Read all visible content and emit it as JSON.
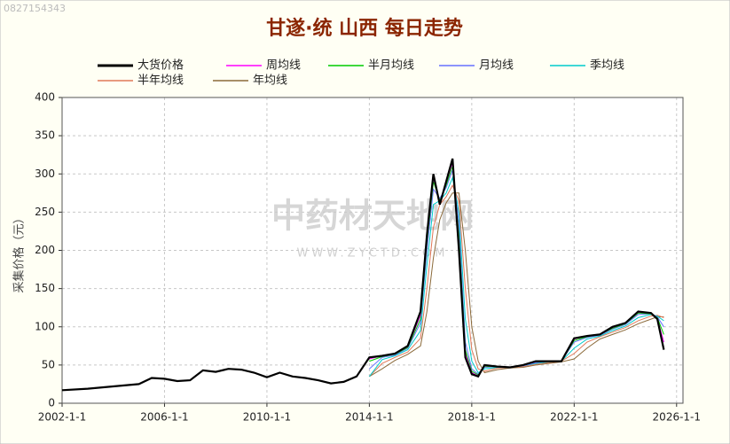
{
  "watermark_id": "0827154343",
  "watermark_logo": "中药材天地网",
  "watermark_url": "WWW.ZYCTD.COM",
  "chart_data": {
    "type": "line",
    "title": "甘遂·统 山西 每日走势",
    "y_label": "采集价格（元）",
    "x": [
      "2002-1-1",
      "2003-1-1",
      "2004-1-1",
      "2005-1-1",
      "2005-7-1",
      "2006-1-1",
      "2006-7-1",
      "2007-1-1",
      "2007-7-1",
      "2008-1-1",
      "2008-7-1",
      "2009-1-1",
      "2009-7-1",
      "2010-1-1",
      "2010-7-1",
      "2011-1-1",
      "2011-7-1",
      "2012-1-1",
      "2012-7-1",
      "2013-1-1",
      "2013-7-1",
      "2014-1-1",
      "2014-7-1",
      "2015-1-1",
      "2015-7-1",
      "2016-1-1",
      "2016-4-1",
      "2016-7-1",
      "2016-10-1",
      "2017-1-1",
      "2017-4-1",
      "2017-7-1",
      "2017-10-1",
      "2018-1-1",
      "2018-4-1",
      "2018-7-1",
      "2019-1-1",
      "2019-7-1",
      "2020-1-1",
      "2020-7-1",
      "2021-1-1",
      "2021-7-1",
      "2022-1-1",
      "2022-7-1",
      "2023-1-1",
      "2023-7-1",
      "2024-1-1",
      "2024-7-1",
      "2025-1-1",
      "2025-4-1",
      "2025-7-1"
    ],
    "series": [
      {
        "name": "大货价格",
        "color": "#000000",
        "width": 2.2,
        "values": [
          17,
          19,
          22,
          25,
          33,
          32,
          29,
          30,
          43,
          41,
          45,
          44,
          40,
          34,
          40,
          35,
          33,
          30,
          26,
          28,
          35,
          60,
          62,
          65,
          75,
          120,
          220,
          300,
          260,
          290,
          320,
          200,
          60,
          38,
          35,
          50,
          48,
          47,
          50,
          55,
          55,
          55,
          85,
          88,
          90,
          100,
          105,
          120,
          118,
          110,
          70
        ]
      },
      {
        "name": "周均线",
        "color": "#ff00ff",
        "width": 1,
        "values": [
          null,
          null,
          null,
          null,
          null,
          null,
          null,
          null,
          null,
          null,
          null,
          null,
          null,
          null,
          null,
          null,
          null,
          null,
          null,
          null,
          null,
          58,
          62,
          65,
          74,
          115,
          215,
          295,
          262,
          288,
          315,
          210,
          65,
          40,
          36,
          49,
          48,
          47,
          50,
          54,
          55,
          55,
          84,
          88,
          90,
          99,
          105,
          119,
          118,
          111,
          80
        ]
      },
      {
        "name": "半月均线",
        "color": "#00cc00",
        "width": 1,
        "values": [
          null,
          null,
          null,
          null,
          null,
          null,
          null,
          null,
          null,
          null,
          null,
          null,
          null,
          null,
          null,
          null,
          null,
          null,
          null,
          null,
          null,
          55,
          61,
          64,
          73,
          110,
          210,
          290,
          265,
          285,
          310,
          220,
          70,
          42,
          37,
          48,
          48,
          47,
          50,
          54,
          55,
          55,
          82,
          87,
          90,
          98,
          104,
          118,
          117,
          112,
          90
        ]
      },
      {
        "name": "月均线",
        "color": "#6670ff",
        "width": 1,
        "values": [
          null,
          null,
          null,
          null,
          null,
          null,
          null,
          null,
          null,
          null,
          null,
          null,
          null,
          null,
          null,
          null,
          null,
          null,
          null,
          null,
          null,
          45,
          60,
          63,
          72,
          105,
          200,
          280,
          268,
          282,
          305,
          235,
          80,
          45,
          38,
          47,
          48,
          47,
          49,
          53,
          55,
          55,
          80,
          86,
          89,
          97,
          103,
          116,
          117,
          113,
          100
        ]
      },
      {
        "name": "季均线",
        "color": "#00cccc",
        "width": 1,
        "values": [
          null,
          null,
          null,
          null,
          null,
          null,
          null,
          null,
          null,
          null,
          null,
          null,
          null,
          null,
          null,
          null,
          null,
          null,
          null,
          null,
          null,
          35,
          57,
          62,
          70,
          95,
          180,
          260,
          265,
          275,
          295,
          250,
          110,
          55,
          40,
          45,
          47,
          47,
          49,
          52,
          54,
          55,
          72,
          84,
          88,
          95,
          101,
          112,
          116,
          114,
          108
        ]
      },
      {
        "name": "半年均线",
        "color": "#e07858",
        "width": 1,
        "values": [
          null,
          null,
          null,
          null,
          null,
          null,
          null,
          null,
          null,
          null,
          null,
          null,
          null,
          null,
          null,
          null,
          null,
          null,
          null,
          null,
          null,
          35,
          52,
          60,
          67,
          85,
          150,
          230,
          260,
          270,
          285,
          265,
          150,
          70,
          45,
          42,
          46,
          47,
          48,
          51,
          53,
          55,
          65,
          80,
          87,
          93,
          99,
          108,
          114,
          115,
          112
        ]
      },
      {
        "name": "年均线",
        "color": "#8b6a3a",
        "width": 1,
        "values": [
          null,
          null,
          null,
          null,
          null,
          null,
          null,
          null,
          null,
          null,
          null,
          null,
          null,
          null,
          null,
          null,
          null,
          null,
          null,
          null,
          null,
          35,
          45,
          56,
          64,
          75,
          120,
          190,
          240,
          262,
          275,
          275,
          200,
          100,
          55,
          40,
          44,
          46,
          47,
          50,
          52,
          54,
          58,
          72,
          84,
          90,
          96,
          104,
          110,
          113,
          113
        ]
      }
    ],
    "xlim": [
      "2002-1-1",
      "2026-4-1"
    ],
    "xticks": [
      "2002-1-1",
      "2006-1-1",
      "2010-1-1",
      "2014-1-1",
      "2018-1-1",
      "2022-1-1",
      "2026-1-1"
    ],
    "ylim": [
      0,
      400
    ],
    "yticks": [
      0,
      50,
      100,
      150,
      200,
      250,
      300,
      350,
      400
    ],
    "grid": true
  }
}
